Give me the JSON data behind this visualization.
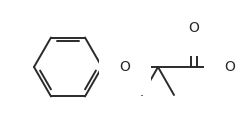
{
  "background": "#ffffff",
  "line_color": "#2a2a2a",
  "line_width": 1.4,
  "figsize": [
    2.5,
    1.33
  ],
  "dpi": 100,
  "xlim": [
    0,
    250
  ],
  "ylim": [
    0,
    133
  ]
}
